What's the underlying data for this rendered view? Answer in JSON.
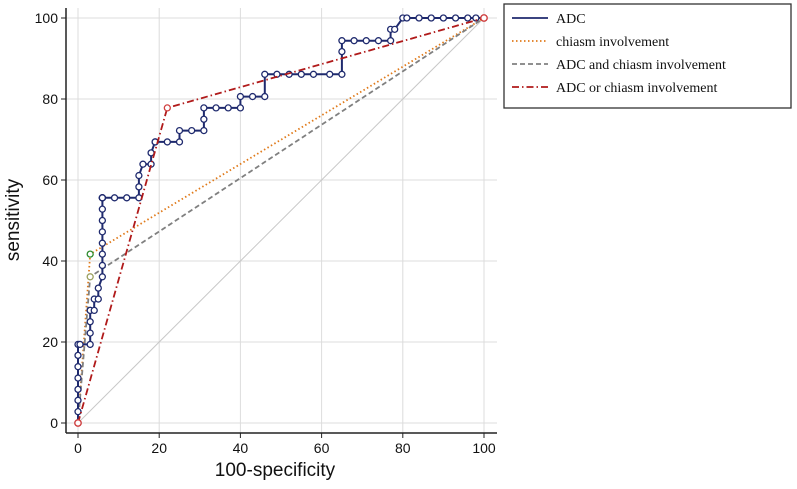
{
  "chart_data": {
    "type": "line",
    "title": "",
    "xlabel": "100-specificity",
    "ylabel": "sensitivity",
    "xlim": [
      0,
      100
    ],
    "ylim": [
      0,
      100
    ],
    "xticks": [
      "0",
      "20",
      "40",
      "60",
      "80",
      "100"
    ],
    "yticks": [
      "0",
      "20",
      "40",
      "60",
      "80",
      "100"
    ],
    "grid": true,
    "legend_position": "right",
    "reference_line": {
      "x": [
        0,
        100
      ],
      "y": [
        0,
        100
      ],
      "color": "#c8c8c8"
    },
    "series": [
      {
        "name": "ADC",
        "color": "#1f2a6e",
        "style": "solid",
        "marker": "circle",
        "x": [
          0,
          0,
          0,
          0,
          0,
          0,
          0,
          0,
          0.5,
          3,
          3,
          3,
          3,
          3,
          4,
          4,
          5,
          5,
          6,
          6,
          6,
          6,
          6,
          6,
          6,
          6,
          6,
          6,
          6,
          9,
          12,
          15,
          15,
          15,
          16,
          18,
          18,
          19,
          19,
          22,
          25,
          25,
          28,
          31,
          31,
          31,
          34,
          37,
          40,
          40,
          43,
          46,
          46,
          49,
          52,
          55,
          58,
          62,
          65,
          65,
          65,
          68,
          71,
          74,
          77,
          77,
          78,
          80,
          81,
          84,
          87,
          90,
          93,
          96,
          98,
          100
        ],
        "y": [
          0,
          2.8,
          5.6,
          8.3,
          11.1,
          13.9,
          16.7,
          19.4,
          19.4,
          19.4,
          22.2,
          25,
          27.8,
          27.8,
          27.8,
          30.6,
          30.6,
          33.3,
          36.1,
          38.9,
          41.7,
          44.4,
          47.2,
          50,
          52.8,
          55.6,
          55.6,
          55.6,
          55.6,
          55.6,
          55.6,
          55.6,
          58.3,
          61.1,
          63.9,
          63.9,
          66.7,
          69.4,
          69.4,
          69.4,
          69.4,
          72.2,
          72.2,
          72.2,
          75,
          77.8,
          77.8,
          77.8,
          77.8,
          80.6,
          80.6,
          80.6,
          86.1,
          86.1,
          86.1,
          86.1,
          86.1,
          86.1,
          86.1,
          91.7,
          94.4,
          94.4,
          94.4,
          94.4,
          94.4,
          97.2,
          97.2,
          100,
          100,
          100,
          100,
          100,
          100,
          100,
          100,
          100
        ]
      },
      {
        "name": "chiasm involvement",
        "color": "#e07a1a",
        "style": "dotted",
        "marker": "none",
        "x": [
          0,
          3,
          100
        ],
        "y": [
          0,
          41.7,
          100
        ],
        "point_color": "#2e8b2e"
      },
      {
        "name": "ADC and chiasm involvement",
        "color": "#808080",
        "style": "dashed",
        "marker": "none",
        "x": [
          0,
          3,
          100
        ],
        "y": [
          0,
          36.1,
          100
        ],
        "point_color": "#9aa060"
      },
      {
        "name": "ADC or chiasm involvement",
        "color": "#b01a1a",
        "style": "dashdot",
        "marker": "none",
        "x": [
          0,
          22,
          100
        ],
        "y": [
          0,
          77.8,
          100
        ],
        "point_color": "#d04040"
      }
    ]
  }
}
